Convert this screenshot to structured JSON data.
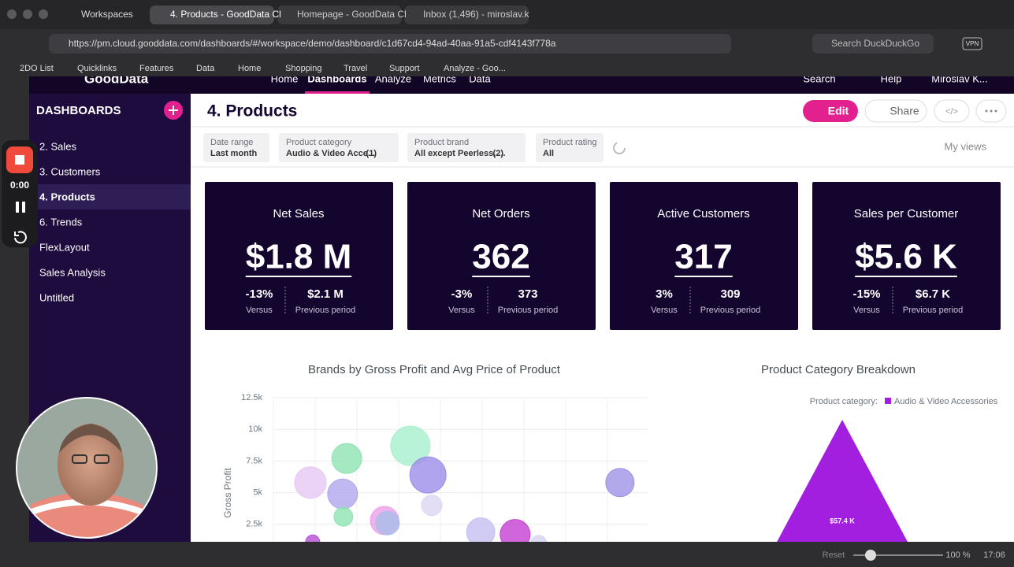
{
  "browser": {
    "workspaces": "Workspaces",
    "tabs": [
      "4. Products - GoodData Cl",
      "Homepage - GoodData Cl",
      "Inbox (1,496) - miroslav.k"
    ],
    "url": "https://pm.cloud.gooddata.com/dashboards/#/workspace/demo/dashboard/c1d67cd4-94ad-40aa-91a5-cdf4143f778a",
    "search": "Search DuckDuckGo",
    "vpn": "VPN",
    "bookmarks": [
      "2DO List",
      "Quicklinks",
      "Features",
      "Data",
      "Home",
      "Shopping",
      "Travel",
      "Support",
      "Analyze - Goo..."
    ]
  },
  "app": {
    "logo": "GoodData",
    "nav": [
      "Home",
      "Dashboards",
      "Analyze",
      "Metrics",
      "Data"
    ],
    "search": "Search",
    "help": "Help",
    "user": "Miroslav K..."
  },
  "sidebar": {
    "heading": "DASHBOARDS",
    "items": [
      "2. Sales",
      "3. Customers",
      "4. Products",
      "6. Trends",
      "FlexLayout",
      "Sales Analysis",
      "Untitled"
    ]
  },
  "recorder": {
    "time": "0:00"
  },
  "dashboard": {
    "title": "4. Products",
    "edit": "Edit",
    "share": "Share",
    "embed": "</>",
    "filters": [
      {
        "label": "Date range",
        "value": "Last month"
      },
      {
        "label": "Product category",
        "value": "Audio & Video Acce...",
        "count": "(1)"
      },
      {
        "label": "Product brand",
        "value": "All except Peerless, ...",
        "count": "(2)"
      },
      {
        "label": "Product rating",
        "value": "All"
      }
    ],
    "my_views": "My views",
    "kpis": [
      {
        "title": "Net Sales",
        "value": "$1.8 M",
        "change": "-13%",
        "versus": "Versus",
        "previous": "$2.1 M",
        "previous_label": "Previous period"
      },
      {
        "title": "Net Orders",
        "value": "362",
        "change": "-3%",
        "versus": "Versus",
        "previous": "373",
        "previous_label": "Previous period"
      },
      {
        "title": "Active Customers",
        "value": "317",
        "change": "3%",
        "versus": "Versus",
        "previous": "309",
        "previous_label": "Previous period"
      },
      {
        "title": "Sales per Customer",
        "value": "$5.6 K",
        "change": "-15%",
        "versus": "Versus",
        "previous": "$6.7 K",
        "previous_label": "Previous period"
      }
    ]
  },
  "chart_data": [
    {
      "type": "bubble",
      "title": "Brands by Gross Profit and Avg Price of Product",
      "y_label": "Gross Profit",
      "x": [
        10.5,
        9.9,
        19.6,
        18.5,
        18.7,
        29.7,
        30.5,
        36.6,
        41.3,
        42.3,
        55.4,
        64.6,
        70.9,
        92.6
      ],
      "values": [
        1100,
        5800,
        7700,
        4900,
        3100,
        2800,
        2600,
        8700,
        6400,
        4000,
        1900,
        1700,
        1000,
        5800
      ],
      "sizes": [
        9,
        20,
        19,
        19,
        12,
        18,
        15,
        25,
        23,
        13,
        18,
        19,
        10,
        18
      ],
      "colors": [
        "#b44fd6",
        "#e6c8f2",
        "#8fe3b4",
        "#b0a6ec",
        "#8fe3b4",
        "#ec9fe8",
        "#a9bde8",
        "#a8f0cd",
        "#9b8de8",
        "#ddd6f3",
        "#c6bff0",
        "#c53fd3",
        "#d6d2f2",
        "#9d93e6"
      ],
      "xlim": [
        0,
        100
      ],
      "ylim": [
        0,
        12500
      ],
      "yticks": [
        {
          "value": 2500,
          "label": "2.5k"
        },
        {
          "value": 5000,
          "label": "5k"
        },
        {
          "value": 7500,
          "label": "7.5k"
        },
        {
          "value": 10000,
          "label": "10k"
        },
        {
          "value": 12500,
          "label": "12.5k"
        }
      ],
      "grid": true
    },
    {
      "type": "pyramid",
      "title": "Product Category Breakdown",
      "legend_title": "Product category:",
      "categories": [
        "Audio & Video Accessories"
      ],
      "values": [
        57400
      ],
      "value_labels": [
        "$57.4 K"
      ],
      "color": "#a21fe0"
    }
  ],
  "status": {
    "reset": "Reset",
    "zoom": "100 %",
    "time": "17:06"
  }
}
